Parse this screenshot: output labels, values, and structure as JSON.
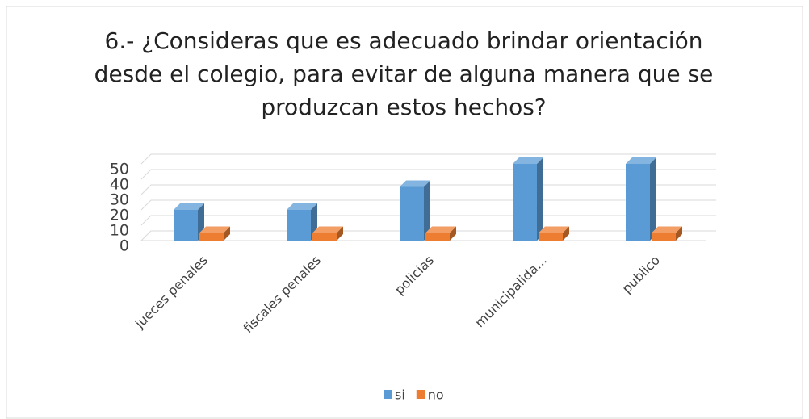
{
  "chart_data": {
    "type": "bar3d",
    "title": [
      "6.- ¿Consideras que es adecuado brindar orientación",
      "desde el colegio, para evitar de alguna manera que se",
      "produzcan estos hechos?"
    ],
    "categories": [
      "jueces penales",
      "fiscales penales",
      "policias",
      "municipalida...",
      "publico"
    ],
    "series": [
      {
        "name": "si",
        "color": "#5b9bd5",
        "values": [
          20,
          20,
          35,
          50,
          50
        ]
      },
      {
        "name": "no",
        "color": "#ed7d31",
        "values": [
          5,
          5,
          5,
          5,
          5
        ]
      }
    ],
    "ylim": [
      0,
      50
    ],
    "yticks": [
      0,
      10,
      20,
      30,
      40,
      50
    ],
    "grid": true,
    "legend": "bottom"
  }
}
